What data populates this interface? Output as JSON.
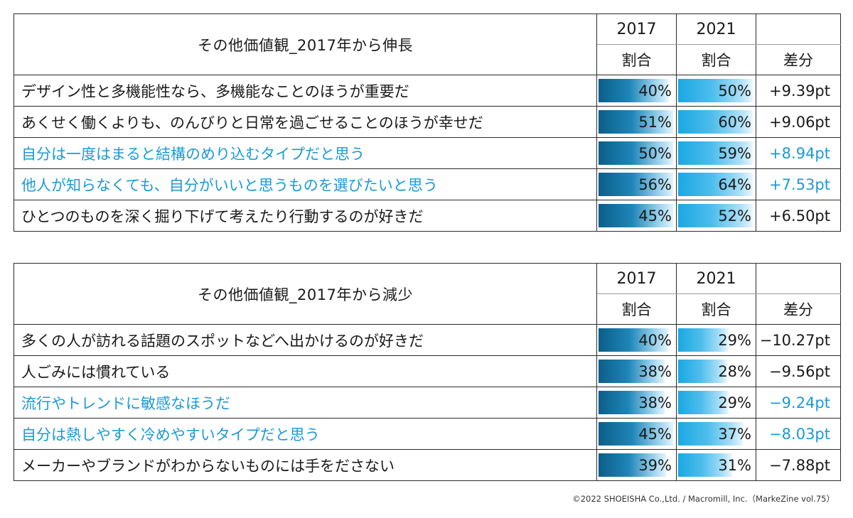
{
  "colors": {
    "highlight": "#1a9ad7",
    "bar_2017": "#0b5e8a",
    "bar_2021": "#1aa8e2"
  },
  "chart_data": [
    {
      "type": "table",
      "title": "その他価値観_2017年から伸長",
      "col_years": [
        "2017",
        "2021"
      ],
      "col_metrics": [
        "割合",
        "割合",
        "差分"
      ],
      "rows": [
        {
          "label": "デザイン性と多機能性なら、多機能なことのほうが重要だ",
          "v2017": 40,
          "v2021": 50,
          "v2017_label": "40%",
          "v2021_label": "50%",
          "diff": "+9.39pt",
          "highlight": false
        },
        {
          "label": "あくせく働くよりも、のんびりと日常を過ごせることのほうが幸せだ",
          "v2017": 51,
          "v2021": 60,
          "v2017_label": "51%",
          "v2021_label": "60%",
          "diff": "+9.06pt",
          "highlight": false
        },
        {
          "label": "自分は一度はまると結構のめり込むタイプだと思う",
          "v2017": 50,
          "v2021": 59,
          "v2017_label": "50%",
          "v2021_label": "59%",
          "diff": "+8.94pt",
          "highlight": true
        },
        {
          "label": "他人が知らなくても、自分がいいと思うものを選びたいと思う",
          "v2017": 56,
          "v2021": 64,
          "v2017_label": "56%",
          "v2021_label": "64%",
          "diff": "+7.53pt",
          "highlight": true
        },
        {
          "label": "ひとつのものを深く掘り下げて考えたり行動するのが好きだ",
          "v2017": 45,
          "v2021": 52,
          "v2017_label": "45%",
          "v2021_label": "52%",
          "diff": "+6.50pt",
          "highlight": false
        }
      ]
    },
    {
      "type": "table",
      "title": "その他価値観_2017年から減少",
      "col_years": [
        "2017",
        "2021"
      ],
      "col_metrics": [
        "割合",
        "割合",
        "差分"
      ],
      "rows": [
        {
          "label": "多くの人が訪れる話題のスポットなどへ出かけるのが好きだ",
          "v2017": 40,
          "v2021": 29,
          "v2017_label": "40%",
          "v2021_label": "29%",
          "diff": "−10.27pt",
          "highlight": false
        },
        {
          "label": "人ごみには慣れている",
          "v2017": 38,
          "v2021": 28,
          "v2017_label": "38%",
          "v2021_label": "28%",
          "diff": "−9.56pt",
          "highlight": false
        },
        {
          "label": "流行やトレンドに敏感なほうだ",
          "v2017": 38,
          "v2021": 29,
          "v2017_label": "38%",
          "v2021_label": "29%",
          "diff": "−9.24pt",
          "highlight": true
        },
        {
          "label": "自分は熱しやすく冷めやすいタイプだと思う",
          "v2017": 45,
          "v2021": 37,
          "v2017_label": "45%",
          "v2021_label": "37%",
          "diff": "−8.03pt",
          "highlight": true
        },
        {
          "label": "メーカーやブランドがわからないものには手をださない",
          "v2017": 39,
          "v2021": 31,
          "v2017_label": "39%",
          "v2021_label": "31%",
          "diff": "−7.88pt",
          "highlight": false
        }
      ]
    }
  ],
  "credit": "©2022 SHOEISHA Co.,Ltd. / Macromill, Inc.（MarkeZine vol.75）"
}
